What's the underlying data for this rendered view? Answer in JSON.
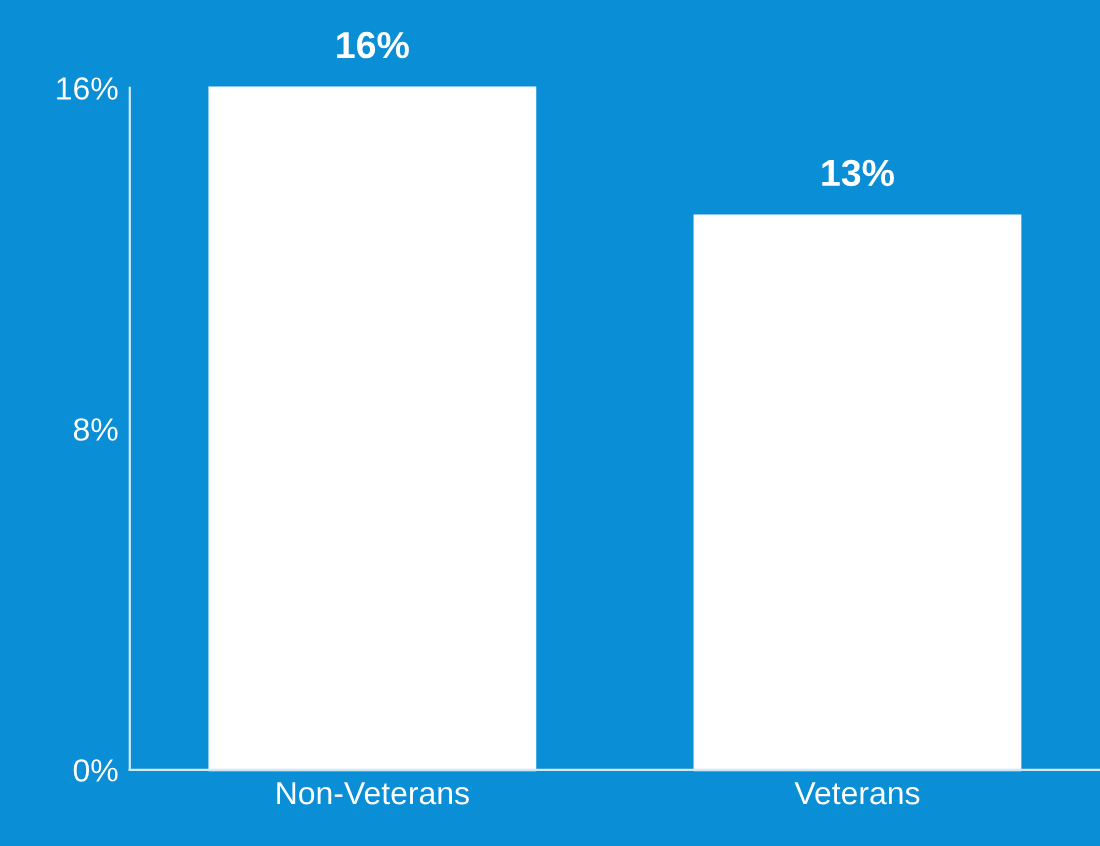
{
  "chart_data": {
    "type": "bar",
    "categories": [
      "Non-Veterans",
      "Veterans"
    ],
    "values": [
      16,
      13
    ],
    "color": "#ffffff",
    "value_labels": [
      "16%",
      "13%"
    ],
    "ylim": [
      0,
      16
    ],
    "yticks": [
      {
        "value": 0,
        "label": "0%"
      },
      {
        "value": 8,
        "label": "8%"
      },
      {
        "value": 16,
        "label": "16%"
      }
    ],
    "grid": false,
    "legend": false
  }
}
